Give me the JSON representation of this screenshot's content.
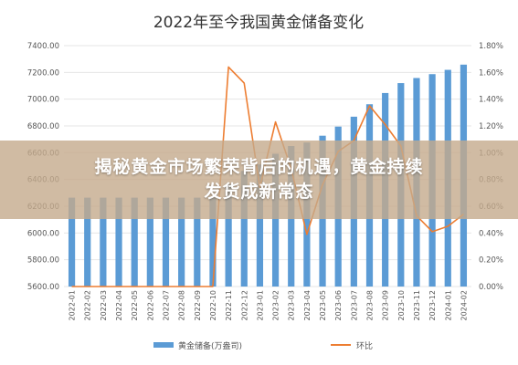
{
  "overlay": {
    "line1": "揭秘黄金市场繁荣背后的机遇，黄金持续",
    "line2": "发货成新常态"
  },
  "colors": {
    "bar": "#5b9bd5",
    "line": "#ed7d31"
  },
  "chart_data": {
    "type": "bar",
    "title": "2022年至今我国黄金储备变化",
    "categories": [
      "2022-01",
      "2022-02",
      "2022-03",
      "2022-04",
      "2022-05",
      "2022-06",
      "2022-07",
      "2022-08",
      "2022-09",
      "2022-10",
      "2022-11",
      "2022-12",
      "2023-01",
      "2023-02",
      "2023-03",
      "2023-04",
      "2023-05",
      "2023-06",
      "2023-07",
      "2023-08",
      "2023-09",
      "2023-10",
      "2023-11",
      "2023-12",
      "2024-01",
      "2024-02"
    ],
    "left_axis": {
      "ylim": [
        5600,
        7400
      ],
      "ticks": [
        "5600.00",
        "5800.00",
        "6000.00",
        "6200.00",
        "6400.00",
        "6600.00",
        "6800.00",
        "7000.00",
        "7200.00",
        "7400.00"
      ]
    },
    "right_axis": {
      "ylim": [
        0,
        1.8
      ],
      "ticks": [
        "0.00%",
        "0.20%",
        "0.40%",
        "0.60%",
        "0.80%",
        "1.00%",
        "1.20%",
        "1.40%",
        "1.60%",
        "1.80%"
      ]
    },
    "series": [
      {
        "name": "黄金储备(万盎司)",
        "type": "bar",
        "axis": "left",
        "values": [
          6264,
          6264,
          6264,
          6264,
          6264,
          6264,
          6264,
          6264,
          6264,
          6264,
          6367,
          6464,
          6512,
          6592,
          6650,
          6676,
          6727,
          6795,
          6869,
          6962,
          7046,
          7120,
          7158,
          7187,
          7219,
          7258
        ]
      },
      {
        "name": "环比",
        "type": "line",
        "axis": "right",
        "values": [
          0,
          0,
          0,
          0,
          0,
          0,
          0,
          0,
          0,
          0,
          1.64,
          1.52,
          0.74,
          1.23,
          0.88,
          0.39,
          0.76,
          1.01,
          1.09,
          1.35,
          1.21,
          1.05,
          0.53,
          0.41,
          0.45,
          0.54
        ]
      }
    ]
  }
}
